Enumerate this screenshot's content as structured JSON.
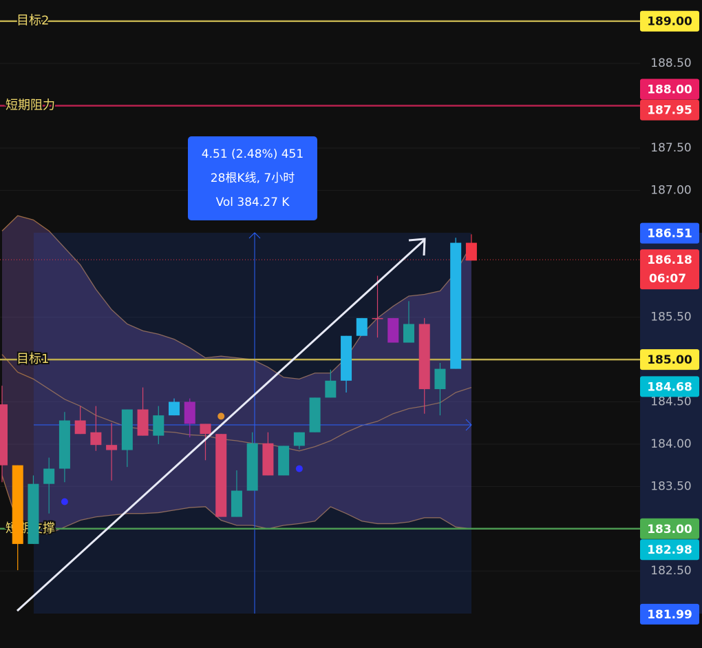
{
  "chart_data": {
    "type": "candlestick",
    "ylim": [
      181.59,
      189.25
    ],
    "yticks": [
      {
        "value": 188.5,
        "label": "188.50"
      },
      {
        "value": 187.5,
        "label": "187.50"
      },
      {
        "value": 187,
        "label": "187.00"
      },
      {
        "value": 185.5,
        "label": "185.50"
      },
      {
        "value": 184.5,
        "label": "184.50"
      },
      {
        "value": 184,
        "label": "184.00"
      },
      {
        "value": 183.5,
        "label": "183.50"
      },
      {
        "value": 182.5,
        "label": "182.50"
      }
    ],
    "open": [
      184.47,
      183.75,
      182.82,
      183.53,
      183.71,
      184.28,
      184.14,
      183.99,
      183.93,
      184.41,
      184.1,
      184.34,
      184.5,
      184.24,
      184.12,
      183.14,
      183.45,
      184.01,
      183.63,
      183.98,
      184.14,
      184.55,
      184.75,
      185.28,
      185.49,
      185.49,
      185.2,
      185.42,
      184.65,
      184.89,
      186.38
    ],
    "high": [
      184.69,
      183.75,
      183.63,
      183.84,
      184.38,
      184.45,
      184.45,
      184.25,
      184.41,
      184.67,
      184.45,
      184.54,
      184.54,
      184.24,
      184.12,
      183.69,
      184.14,
      184.14,
      183.98,
      184.14,
      184.55,
      184.88,
      185.28,
      185.49,
      185.99,
      185.49,
      185.69,
      185.49,
      184.96,
      186.44,
      186.48
    ],
    "low": [
      183.55,
      182.51,
      182.82,
      183.18,
      183.55,
      184.12,
      183.92,
      183.57,
      183.73,
      184.1,
      184.0,
      184.34,
      184.08,
      183.81,
      183.14,
      183.14,
      183.45,
      183.63,
      183.63,
      183.94,
      184.14,
      184.55,
      184.61,
      185.28,
      185.26,
      185.2,
      185.2,
      184.36,
      184.34,
      184.89,
      186.17
    ],
    "close": [
      183.75,
      182.82,
      183.53,
      183.71,
      184.28,
      184.12,
      183.99,
      183.93,
      184.41,
      184.1,
      184.34,
      184.5,
      184.24,
      184.12,
      183.14,
      183.45,
      184.01,
      183.63,
      183.98,
      184.14,
      184.55,
      184.75,
      185.28,
      185.49,
      185.48,
      185.2,
      185.42,
      184.65,
      184.89,
      186.38,
      186.17
    ],
    "colors": [
      "#d6436c",
      "#ff9800",
      "#1e9c99",
      "#1e9c99",
      "#1e9c99",
      "#d6436c",
      "#d6436c",
      "#d6436c",
      "#1e9c99",
      "#d6436c",
      "#1e9c99",
      "#23b4e8",
      "#9c27b0",
      "#d6436c",
      "#d6436c",
      "#1e9c99",
      "#1e9c99",
      "#d6436c",
      "#1e9c99",
      "#1e9c99",
      "#1e9c99",
      "#1e9c99",
      "#23b4e8",
      "#23b4e8",
      "#d6436c",
      "#9c27b0",
      "#1e9c99",
      "#d6436c",
      "#1e9c99",
      "#23b4e8",
      "#f23645"
    ],
    "bands": {
      "upper": [
        186.52,
        186.7,
        186.65,
        186.52,
        186.32,
        186.12,
        185.83,
        185.59,
        185.42,
        185.34,
        185.3,
        185.24,
        185.14,
        185.02,
        185.04,
        185.02,
        185.0,
        184.91,
        184.79,
        184.77,
        184.84,
        184.84,
        185.02,
        185.3,
        185.49,
        185.63,
        185.75,
        185.77,
        185.81,
        186.03,
        186.36
      ],
      "middle": [
        185.06,
        184.85,
        184.77,
        184.65,
        184.53,
        184.45,
        184.34,
        184.27,
        184.2,
        184.18,
        184.15,
        184.14,
        184.11,
        184.1,
        184.06,
        184.04,
        184.01,
        184.0,
        183.96,
        183.92,
        183.97,
        184.04,
        184.14,
        184.22,
        184.27,
        184.36,
        184.42,
        184.45,
        184.49,
        184.61,
        184.67
      ],
      "lower": [
        183.63,
        183.06,
        182.94,
        182.94,
        183.02,
        183.1,
        183.14,
        183.16,
        183.18,
        183.18,
        183.19,
        183.22,
        183.25,
        183.26,
        183.1,
        183.04,
        183.04,
        183.0,
        183.04,
        183.06,
        183.09,
        183.26,
        183.18,
        183.09,
        183.06,
        183.06,
        183.08,
        183.13,
        183.13,
        183.02,
        183.0
      ]
    },
    "markers": [
      {
        "x": 4,
        "value": 183.32,
        "color": "#2f2fff"
      },
      {
        "x": 14,
        "value": 184.33,
        "color": "#e0902c"
      },
      {
        "x": 19,
        "value": 183.71,
        "color": "#2f2fff"
      }
    ],
    "levels": [
      {
        "name": "目标2",
        "value": 189,
        "color": "#bfae4e"
      },
      {
        "name": "短期阻力",
        "value": 188,
        "color": "#b8204f"
      },
      {
        "name": "目标1",
        "value": 185,
        "color": "#bfae4e"
      },
      {
        "name": "短期支撑",
        "value": 183,
        "color": "#4c9a52"
      }
    ],
    "price_tags": [
      {
        "value": 189,
        "label": "189.00",
        "color": "#ffeb3b"
      },
      {
        "value": 188,
        "label": "188.00",
        "color": "#e91e63"
      },
      {
        "value": 187.95,
        "label": "187.95",
        "color": "#f23645"
      },
      {
        "value": 186.51,
        "label": "186.51",
        "color": "#2962ff"
      },
      {
        "value": 186.18,
        "label": "186.18",
        "color": "#f23645",
        "countdown": "06:07"
      },
      {
        "value": 185,
        "label": "185.00",
        "color": "#ffeb3b"
      },
      {
        "value": 184.68,
        "label": "184.68",
        "color": "#00bcd4"
      },
      {
        "value": 183,
        "label": "183.00",
        "color": "#4caf50"
      },
      {
        "value": 182.98,
        "label": "182.98",
        "color": "#00bcd4"
      },
      {
        "value": 181.99,
        "label": "181.99",
        "color": "#2962ff"
      }
    ],
    "measure": {
      "line1": "4.51 (2.48%) 451",
      "line2": "28根K线, 7小时",
      "line3": "Vol 384.27 K"
    }
  }
}
